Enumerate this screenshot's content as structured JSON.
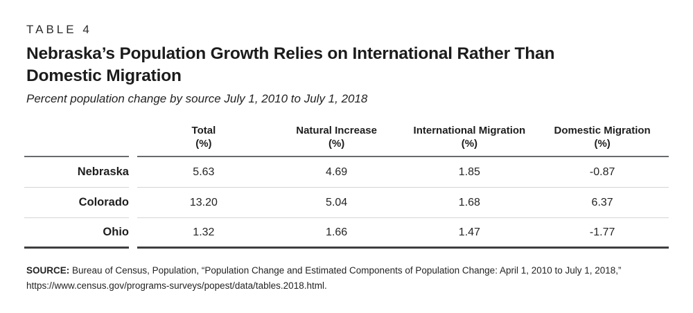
{
  "table_label": "TABLE 4",
  "title_lines": [
    "Nebraska’s Population Growth Relies on International Rather Than",
    "Domestic Migration"
  ],
  "subtitle": "Percent population change by source July 1, 2010 to July 1, 2018",
  "table": {
    "columns": [
      {
        "label": "Total",
        "unit": "(%)"
      },
      {
        "label": "Natural Increase",
        "unit": "(%)"
      },
      {
        "label": "International Migration",
        "unit": "(%)"
      },
      {
        "label": "Domestic Migration",
        "unit": "(%)"
      }
    ],
    "rows": [
      {
        "label": "Nebraska",
        "values": [
          "5.63",
          "4.69",
          "1.85",
          "-0.87"
        ]
      },
      {
        "label": "Colorado",
        "values": [
          "13.20",
          "5.04",
          "1.68",
          "6.37"
        ]
      },
      {
        "label": "Ohio",
        "values": [
          "1.32",
          "1.66",
          "1.47",
          "-1.77"
        ]
      }
    ]
  },
  "source": {
    "label": "SOURCE:",
    "text": "Bureau of Census, Population, “Population Change and Estimated Components of Population Change: April 1, 2010 to July 1, 2018,”",
    "url": "https://www.census.gov/programs-surveys/popest/data/tables.2018.html."
  }
}
